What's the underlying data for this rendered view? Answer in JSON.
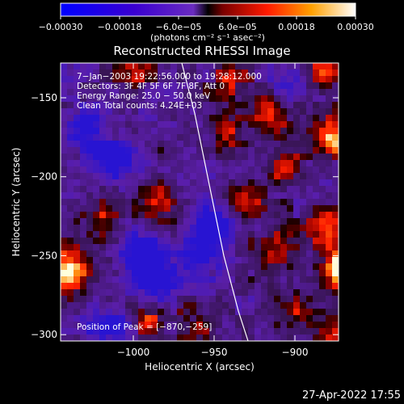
{
  "chart_data": {
    "type": "heatmap",
    "title": "Reconstructed RHESSI Image",
    "xlabel": "Heliocentric X (arcsec)",
    "ylabel": "Heliocentric Y (arcsec)",
    "xlim": [
      -1045,
      -873
    ],
    "ylim": [
      -304,
      -128
    ],
    "x_ticks": [
      -1000,
      -950,
      -900
    ],
    "x_tick_labels": [
      "−1000",
      "−950",
      "−900"
    ],
    "y_ticks": [
      -300,
      -250,
      -200,
      -150
    ],
    "y_tick_labels": [
      "−300",
      "−250",
      "−200",
      "−150"
    ],
    "colorbar": {
      "range": [
        -0.0003,
        0.0003
      ],
      "ticks": [
        -0.0003,
        -0.00018,
        -6e-05,
        6e-05,
        0.00018,
        0.0003
      ],
      "tick_labels": [
        "−0.00030",
        "−0.00018",
        "−6.0e−05",
        "6.0e−05",
        "0.00018",
        "0.00030"
      ],
      "unit_label": "(photons cm⁻² s⁻¹ asec⁻²)"
    },
    "annotations": [
      "7−Jan−2003 19:22:56.000 to 19:28:12.000",
      "Detectors: 3F 4F 5F 6F 7F 8F, Att 0",
      "Energy Range: 25.0 − 50.0 keV",
      "Clean     Total counts: 4.24E+03"
    ],
    "peak_label": "Position of Peak = [−870,−259]",
    "peak": [
      -870,
      -259
    ],
    "limb_curve": [
      [
        -970,
        -128
      ],
      [
        -962,
        -160
      ],
      [
        -954,
        -200
      ],
      [
        -944,
        -250
      ],
      [
        -935,
        -285
      ],
      [
        -929,
        -304
      ]
    ],
    "hot_spots": [
      {
        "x": -1040,
        "y": -260,
        "v": 1.0
      },
      {
        "x": -1020,
        "y": -230,
        "v": 0.55
      },
      {
        "x": -1000,
        "y": -135,
        "v": 0.5
      },
      {
        "x": -985,
        "y": -215,
        "v": 0.6
      },
      {
        "x": -990,
        "y": -290,
        "v": 0.55
      },
      {
        "x": -940,
        "y": -140,
        "v": 0.5
      },
      {
        "x": -930,
        "y": -215,
        "v": 0.65
      },
      {
        "x": -940,
        "y": -170,
        "v": 0.45
      },
      {
        "x": -915,
        "y": -160,
        "v": 0.6
      },
      {
        "x": -905,
        "y": -195,
        "v": 0.55
      },
      {
        "x": -910,
        "y": -245,
        "v": 0.6
      },
      {
        "x": -905,
        "y": -285,
        "v": 0.5
      },
      {
        "x": -885,
        "y": -135,
        "v": 0.75
      },
      {
        "x": -875,
        "y": -175,
        "v": 0.85
      },
      {
        "x": -880,
        "y": -230,
        "v": 0.8
      },
      {
        "x": -870,
        "y": -259,
        "v": 1.15
      },
      {
        "x": -875,
        "y": -300,
        "v": 0.65
      },
      {
        "x": -960,
        "y": -295,
        "v": 0.45
      }
    ],
    "cold_spots": [
      {
        "x": -1010,
        "y": -190,
        "v": -0.8
      },
      {
        "x": -995,
        "y": -250,
        "v": -0.9
      },
      {
        "x": -985,
        "y": -265,
        "v": -0.85
      },
      {
        "x": -1030,
        "y": -170,
        "v": -0.7
      },
      {
        "x": -960,
        "y": -250,
        "v": -0.7
      },
      {
        "x": -950,
        "y": -230,
        "v": -0.6
      },
      {
        "x": -1015,
        "y": -295,
        "v": -0.6
      },
      {
        "x": -900,
        "y": -140,
        "v": -0.5
      }
    ]
  },
  "footer": {
    "date": "27-Apr-2022 17:55"
  }
}
